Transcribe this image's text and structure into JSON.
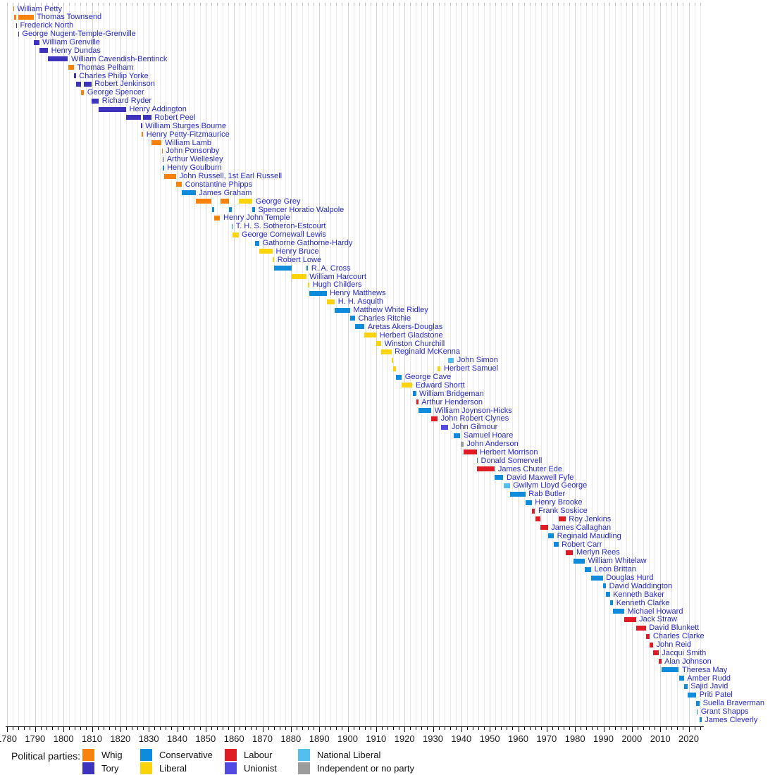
{
  "chart_data": {
    "type": "timeline",
    "description": "Timeline of office holders by political party, 1780s to 2020s",
    "x_axis": {
      "min": 1780,
      "max": 2025,
      "minor_tick_step": 2,
      "major_tick_step": 10,
      "tick_labels": [
        "1780",
        "1790",
        "1800",
        "1810",
        "1820",
        "1830",
        "1840",
        "1850",
        "1860",
        "1870",
        "1880",
        "1890",
        "1900",
        "1910",
        "1920",
        "1930",
        "1940",
        "1950",
        "1960",
        "1970",
        "1980",
        "1990",
        "2000",
        "2010",
        "2020"
      ]
    },
    "parties": {
      "Whig": "#F8820B",
      "Tory": "#3D33BC",
      "Conservative": "#0E8CDB",
      "Liberal": "#FBD30B",
      "Labour": "#DF1B23",
      "Unionist": "#534AE3",
      "National Liberal": "#52BFEE",
      "Independent or no party": "#9C9C9C"
    },
    "legend": {
      "heading": "Political parties:",
      "columns": [
        [
          "Whig",
          "Tory"
        ],
        [
          "Conservative",
          "Liberal"
        ],
        [
          "Labour",
          "Unionist"
        ],
        [
          "National Liberal",
          "Independent or no party"
        ]
      ]
    },
    "people": [
      {
        "name": "William Petty",
        "terms": [
          {
            "start": 1782.24,
            "end": 1782.52,
            "party": "Whig"
          }
        ]
      },
      {
        "name": "Thomas Townsend",
        "terms": [
          {
            "start": 1782.52,
            "end": 1783.25,
            "party": "Whig"
          },
          {
            "start": 1783.98,
            "end": 1789.43,
            "party": "Whig"
          }
        ]
      },
      {
        "name": "Frederick North",
        "terms": [
          {
            "start": 1783.25,
            "end": 1783.45,
            "party": "Tory"
          }
        ]
      },
      {
        "name": "George Nugent-Temple-Grenville",
        "terms": [
          {
            "start": 1783.96,
            "end": 1783.99,
            "party": "Tory"
          }
        ]
      },
      {
        "name": "William Grenville",
        "terms": [
          {
            "start": 1789.43,
            "end": 1791.43,
            "party": "Tory"
          }
        ]
      },
      {
        "name": "Henry Dundas",
        "terms": [
          {
            "start": 1791.43,
            "end": 1794.52,
            "party": "Tory"
          }
        ]
      },
      {
        "name": "William Cavendish-Bentinck",
        "terms": [
          {
            "start": 1794.52,
            "end": 1801.57,
            "party": "Tory"
          }
        ]
      },
      {
        "name": "Thomas Pelham",
        "terms": [
          {
            "start": 1801.57,
            "end": 1803.62,
            "party": "Whig"
          }
        ]
      },
      {
        "name": "Charles Philip Yorke",
        "terms": [
          {
            "start": 1803.62,
            "end": 1804.37,
            "party": "Tory"
          }
        ]
      },
      {
        "name": "Robert Jenkinson",
        "terms": [
          {
            "start": 1804.37,
            "end": 1806.09,
            "party": "Tory"
          },
          {
            "start": 1807.25,
            "end": 1809.83,
            "party": "Tory"
          }
        ]
      },
      {
        "name": "George Spencer",
        "terms": [
          {
            "start": 1806.09,
            "end": 1807.24,
            "party": "Whig"
          }
        ]
      },
      {
        "name": "Richard Ryder",
        "terms": [
          {
            "start": 1809.83,
            "end": 1812.44,
            "party": "Tory"
          }
        ]
      },
      {
        "name": "Henry Addington",
        "terms": [
          {
            "start": 1812.44,
            "end": 1822.03,
            "party": "Tory"
          }
        ]
      },
      {
        "name": "Robert Peel",
        "terms": [
          {
            "start": 1822.03,
            "end": 1827.3,
            "party": "Tory"
          },
          {
            "start": 1828.06,
            "end": 1830.88,
            "party": "Tory"
          }
        ]
      },
      {
        "name": "William Sturges Bourne",
        "terms": [
          {
            "start": 1827.3,
            "end": 1827.54,
            "party": "Tory"
          }
        ]
      },
      {
        "name": "Henry Petty-Fitzmaurice",
        "terms": [
          {
            "start": 1827.54,
            "end": 1828.06,
            "party": "Whig"
          }
        ]
      },
      {
        "name": "William Lamb",
        "terms": [
          {
            "start": 1830.88,
            "end": 1834.54,
            "party": "Whig"
          }
        ]
      },
      {
        "name": "John Ponsonby",
        "terms": [
          {
            "start": 1834.54,
            "end": 1834.87,
            "party": "Whig"
          }
        ]
      },
      {
        "name": "Arthur Wellesley",
        "terms": [
          {
            "start": 1834.87,
            "end": 1834.96,
            "party": "Tory"
          }
        ]
      },
      {
        "name": "Henry Goulburn",
        "terms": [
          {
            "start": 1834.96,
            "end": 1835.3,
            "party": "Conservative"
          }
        ]
      },
      {
        "name": "John Russell, 1st Earl Russell",
        "terms": [
          {
            "start": 1835.3,
            "end": 1839.65,
            "party": "Whig"
          }
        ]
      },
      {
        "name": "Constantine Phipps",
        "terms": [
          {
            "start": 1839.65,
            "end": 1841.67,
            "party": "Whig"
          }
        ]
      },
      {
        "name": "James Graham",
        "terms": [
          {
            "start": 1841.68,
            "end": 1846.5,
            "party": "Conservative"
          }
        ]
      },
      {
        "name": "George Grey",
        "terms": [
          {
            "start": 1846.51,
            "end": 1852.14,
            "party": "Whig"
          },
          {
            "start": 1855.13,
            "end": 1858.15,
            "party": "Whig"
          },
          {
            "start": 1861.56,
            "end": 1866.5,
            "party": "Liberal"
          }
        ]
      },
      {
        "name": "Spencer Horatio Walpole",
        "terms": [
          {
            "start": 1852.14,
            "end": 1852.96,
            "party": "Conservative"
          },
          {
            "start": 1858.15,
            "end": 1859.17,
            "party": "Conservative"
          },
          {
            "start": 1866.5,
            "end": 1867.38,
            "party": "Conservative"
          }
        ]
      },
      {
        "name": "Henry John Temple",
        "terms": [
          {
            "start": 1852.97,
            "end": 1855.12,
            "party": "Whig"
          }
        ]
      },
      {
        "name": "T. H. S. Sotheron-Estcourt",
        "terms": [
          {
            "start": 1859.17,
            "end": 1859.44,
            "party": "Conservative"
          }
        ]
      },
      {
        "name": "George Cornewall Lewis",
        "terms": [
          {
            "start": 1859.46,
            "end": 1861.56,
            "party": "Liberal"
          }
        ]
      },
      {
        "name": "Gathorne Gathorne-Hardy",
        "terms": [
          {
            "start": 1867.38,
            "end": 1868.92,
            "party": "Conservative"
          }
        ]
      },
      {
        "name": "Henry Bruce",
        "terms": [
          {
            "start": 1868.93,
            "end": 1873.6,
            "party": "Liberal"
          }
        ]
      },
      {
        "name": "Robert Lowe",
        "terms": [
          {
            "start": 1873.6,
            "end": 1874.13,
            "party": "Liberal"
          }
        ]
      },
      {
        "name": "R. A. Cross",
        "terms": [
          {
            "start": 1874.14,
            "end": 1880.3,
            "party": "Conservative"
          },
          {
            "start": 1885.46,
            "end": 1886.1,
            "party": "Conservative"
          }
        ]
      },
      {
        "name": "William Harcourt",
        "terms": [
          {
            "start": 1880.32,
            "end": 1885.45,
            "party": "Liberal"
          }
        ]
      },
      {
        "name": "Hugh Childers",
        "terms": [
          {
            "start": 1886.1,
            "end": 1886.56,
            "party": "Liberal"
          }
        ]
      },
      {
        "name": "Henry Matthews",
        "terms": [
          {
            "start": 1886.6,
            "end": 1892.6,
            "party": "Conservative"
          }
        ]
      },
      {
        "name": "H. H. Asquith",
        "terms": [
          {
            "start": 1892.62,
            "end": 1895.48,
            "party": "Liberal"
          }
        ]
      },
      {
        "name": "Matthew White Ridley",
        "terms": [
          {
            "start": 1895.48,
            "end": 1900.84,
            "party": "Conservative"
          }
        ]
      },
      {
        "name": "Charles Ritchie",
        "terms": [
          {
            "start": 1900.84,
            "end": 1902.6,
            "party": "Conservative"
          }
        ]
      },
      {
        "name": "Aretas Akers-Douglas",
        "terms": [
          {
            "start": 1902.6,
            "end": 1905.92,
            "party": "Conservative"
          }
        ]
      },
      {
        "name": "Herbert Gladstone",
        "terms": [
          {
            "start": 1905.93,
            "end": 1910.12,
            "party": "Liberal"
          }
        ]
      },
      {
        "name": "Winston Churchill",
        "terms": [
          {
            "start": 1910.12,
            "end": 1911.8,
            "party": "Liberal"
          }
        ]
      },
      {
        "name": "Reginald McKenna",
        "terms": [
          {
            "start": 1911.8,
            "end": 1915.4,
            "party": "Liberal"
          }
        ]
      },
      {
        "name": "John Simon",
        "terms": [
          {
            "start": 1915.4,
            "end": 1916.04,
            "party": "Liberal"
          },
          {
            "start": 1935.43,
            "end": 1937.4,
            "party": "National Liberal"
          }
        ]
      },
      {
        "name": "Herbert Samuel",
        "terms": [
          {
            "start": 1916.04,
            "end": 1916.94,
            "party": "Liberal"
          },
          {
            "start": 1931.64,
            "end": 1932.73,
            "party": "Liberal"
          }
        ]
      },
      {
        "name": "George Cave",
        "terms": [
          {
            "start": 1916.94,
            "end": 1919.04,
            "party": "Conservative"
          }
        ]
      },
      {
        "name": "Edward Shortt",
        "terms": [
          {
            "start": 1919.04,
            "end": 1922.8,
            "party": "Liberal"
          }
        ]
      },
      {
        "name": "William Bridgeman",
        "terms": [
          {
            "start": 1922.8,
            "end": 1924.06,
            "party": "Conservative"
          }
        ]
      },
      {
        "name": "Arthur Henderson",
        "terms": [
          {
            "start": 1924.06,
            "end": 1924.84,
            "party": "Labour"
          }
        ]
      },
      {
        "name": "William Joynson-Hicks",
        "terms": [
          {
            "start": 1924.84,
            "end": 1929.42,
            "party": "Conservative"
          }
        ]
      },
      {
        "name": "John Robert Clynes",
        "terms": [
          {
            "start": 1929.42,
            "end": 1931.64,
            "party": "Labour"
          }
        ]
      },
      {
        "name": "John Gilmour",
        "terms": [
          {
            "start": 1932.73,
            "end": 1935.43,
            "party": "Unionist"
          }
        ]
      },
      {
        "name": "Samuel Hoare",
        "terms": [
          {
            "start": 1937.4,
            "end": 1939.67,
            "party": "Conservative"
          }
        ]
      },
      {
        "name": "John Anderson",
        "terms": [
          {
            "start": 1939.67,
            "end": 1940.75,
            "party": "Independent or no party"
          }
        ]
      },
      {
        "name": "Herbert Morrison",
        "terms": [
          {
            "start": 1940.75,
            "end": 1945.38,
            "party": "Labour"
          }
        ]
      },
      {
        "name": "Donald Somervell",
        "terms": [
          {
            "start": 1945.4,
            "end": 1945.58,
            "party": "Conservative"
          }
        ]
      },
      {
        "name": "James Chuter Ede",
        "terms": [
          {
            "start": 1945.58,
            "end": 1951.8,
            "party": "Labour"
          }
        ]
      },
      {
        "name": "David Maxwell Fyfe",
        "terms": [
          {
            "start": 1951.8,
            "end": 1954.79,
            "party": "Conservative"
          }
        ]
      },
      {
        "name": "Gwilym Lloyd George",
        "terms": [
          {
            "start": 1954.79,
            "end": 1957.04,
            "party": "National Liberal"
          }
        ]
      },
      {
        "name": "Rab Butler",
        "terms": [
          {
            "start": 1957.04,
            "end": 1962.54,
            "party": "Conservative"
          }
        ]
      },
      {
        "name": "Henry Brooke",
        "terms": [
          {
            "start": 1962.54,
            "end": 1964.79,
            "party": "Conservative"
          }
        ]
      },
      {
        "name": "Frank Soskice",
        "terms": [
          {
            "start": 1964.79,
            "end": 1965.96,
            "party": "Labour"
          }
        ]
      },
      {
        "name": "Roy Jenkins",
        "terms": [
          {
            "start": 1965.96,
            "end": 1967.9,
            "party": "Labour"
          },
          {
            "start": 1974.18,
            "end": 1976.68,
            "party": "Labour"
          }
        ]
      },
      {
        "name": "James Callaghan",
        "terms": [
          {
            "start": 1967.9,
            "end": 1970.46,
            "party": "Labour"
          }
        ]
      },
      {
        "name": "Reginald Maudling",
        "terms": [
          {
            "start": 1970.46,
            "end": 1972.54,
            "party": "Conservative"
          }
        ]
      },
      {
        "name": "Robert Carr",
        "terms": [
          {
            "start": 1972.54,
            "end": 1974.17,
            "party": "Conservative"
          }
        ]
      },
      {
        "name": "Merlyn Rees",
        "terms": [
          {
            "start": 1976.68,
            "end": 1979.34,
            "party": "Labour"
          }
        ]
      },
      {
        "name": "William Whitelaw",
        "terms": [
          {
            "start": 1979.35,
            "end": 1983.44,
            "party": "Conservative"
          }
        ]
      },
      {
        "name": "Leon Brittan",
        "terms": [
          {
            "start": 1983.44,
            "end": 1985.67,
            "party": "Conservative"
          }
        ]
      },
      {
        "name": "Douglas Hurd",
        "terms": [
          {
            "start": 1985.67,
            "end": 1989.8,
            "party": "Conservative"
          }
        ]
      },
      {
        "name": "David Waddington",
        "terms": [
          {
            "start": 1989.8,
            "end": 1990.9,
            "party": "Conservative"
          }
        ]
      },
      {
        "name": "Kenneth Baker",
        "terms": [
          {
            "start": 1990.9,
            "end": 1992.27,
            "party": "Conservative"
          }
        ]
      },
      {
        "name": "Kenneth Clarke",
        "terms": [
          {
            "start": 1992.27,
            "end": 1993.4,
            "party": "Conservative"
          }
        ]
      },
      {
        "name": "Michael Howard",
        "terms": [
          {
            "start": 1993.4,
            "end": 1997.33,
            "party": "Conservative"
          }
        ]
      },
      {
        "name": "Jack Straw",
        "terms": [
          {
            "start": 1997.33,
            "end": 2001.44,
            "party": "Labour"
          }
        ]
      },
      {
        "name": "David Blunkett",
        "terms": [
          {
            "start": 2001.44,
            "end": 2004.96,
            "party": "Labour"
          }
        ]
      },
      {
        "name": "Charles Clarke",
        "terms": [
          {
            "start": 2004.96,
            "end": 2006.34,
            "party": "Labour"
          }
        ]
      },
      {
        "name": "John Reid",
        "terms": [
          {
            "start": 2006.34,
            "end": 2007.48,
            "party": "Labour"
          }
        ]
      },
      {
        "name": "Jacqui Smith",
        "terms": [
          {
            "start": 2007.48,
            "end": 2009.42,
            "party": "Labour"
          }
        ]
      },
      {
        "name": "Alan Johnson",
        "terms": [
          {
            "start": 2009.42,
            "end": 2010.35,
            "party": "Labour"
          }
        ]
      },
      {
        "name": "Theresa May",
        "terms": [
          {
            "start": 2010.35,
            "end": 2016.53,
            "party": "Conservative"
          }
        ]
      },
      {
        "name": "Amber Rudd",
        "terms": [
          {
            "start": 2016.53,
            "end": 2018.33,
            "party": "Conservative"
          }
        ]
      },
      {
        "name": "Sajid Javid",
        "terms": [
          {
            "start": 2018.33,
            "end": 2019.56,
            "party": "Conservative"
          }
        ]
      },
      {
        "name": "Priti Patel",
        "terms": [
          {
            "start": 2019.56,
            "end": 2022.68,
            "party": "Conservative"
          }
        ]
      },
      {
        "name": "Suella Braverman",
        "terms": [
          {
            "start": 2022.68,
            "end": 2022.8,
            "party": "Conservative"
          },
          {
            "start": 2022.82,
            "end": 2023.87,
            "party": "Conservative"
          }
        ]
      },
      {
        "name": "Grant Shapps",
        "terms": [
          {
            "start": 2022.8,
            "end": 2022.82,
            "party": "Conservative"
          }
        ]
      },
      {
        "name": "James Cleverly",
        "terms": [
          {
            "start": 2023.87,
            "end": 2024.51,
            "party": "Conservative"
          }
        ]
      }
    ]
  }
}
